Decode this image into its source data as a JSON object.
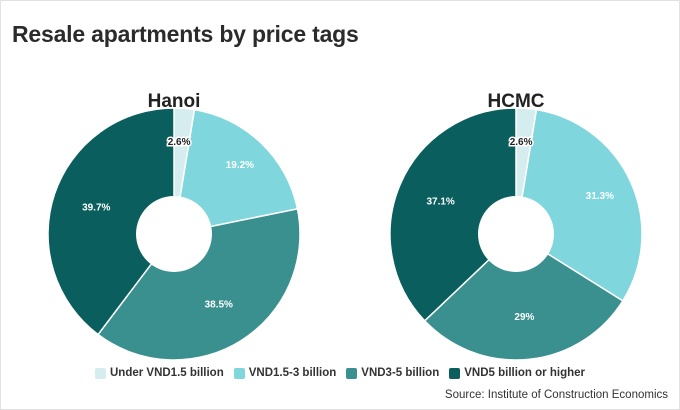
{
  "title": "Resale apartments by price tags",
  "source": "Source: Institute of Construction Economics",
  "legend": [
    {
      "label": "Under VND1.5 billion",
      "color": "#d6edf0"
    },
    {
      "label": "VND1.5-3 billion",
      "color": "#7fd6dc"
    },
    {
      "label": "VND3-5 billion",
      "color": "#3a8f8f"
    },
    {
      "label": "VND5 billion or higher",
      "color": "#0b5e5e"
    }
  ],
  "chart_data": [
    {
      "type": "pie",
      "title": "Hanoi",
      "categories": [
        "Under VND1.5 billion",
        "VND1.5-3 billion",
        "VND3-5 billion",
        "VND5 billion or higher"
      ],
      "values": [
        2.6,
        19.2,
        38.5,
        39.7
      ],
      "labels": [
        "2.6%",
        "19.2%",
        "38.5%",
        "39.7%"
      ],
      "colors": [
        "#d6edf0",
        "#7fd6dc",
        "#3a8f8f",
        "#0b5e5e"
      ],
      "donut": true,
      "legend_position": "bottom"
    },
    {
      "type": "pie",
      "title": "HCMC",
      "categories": [
        "Under VND1.5 billion",
        "VND1.5-3 billion",
        "VND3-5 billion",
        "VND5 billion or higher"
      ],
      "values": [
        2.6,
        31.3,
        29,
        37.1
      ],
      "labels": [
        "2.6%",
        "31.3%",
        "29%",
        "37.1%"
      ],
      "colors": [
        "#d6edf0",
        "#7fd6dc",
        "#3a8f8f",
        "#0b5e5e"
      ],
      "donut": true,
      "legend_position": "bottom"
    }
  ]
}
